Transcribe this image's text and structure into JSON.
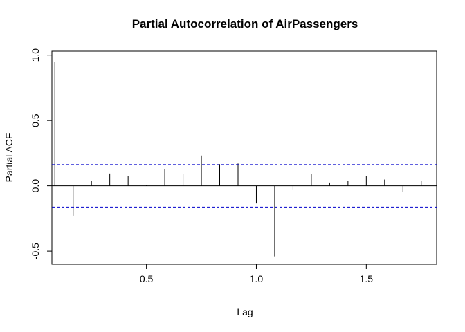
{
  "chart_data": {
    "type": "bar",
    "title": "Partial Autocorrelation of AirPassengers",
    "xlabel": "Lag",
    "ylabel": "Partial ACF",
    "xlim": [
      0.07,
      1.82
    ],
    "ylim": [
      -0.6,
      1.03
    ],
    "x_ticks": [
      0.5,
      1.0,
      1.5
    ],
    "x_tick_labels": [
      "0.5",
      "1.0",
      "1.5"
    ],
    "y_ticks": [
      -0.5,
      0.0,
      0.5,
      1.0
    ],
    "y_tick_labels": [
      "-0.5",
      "0.0",
      "0.5",
      "1.0"
    ],
    "confidence_bound": 0.163,
    "zero_line": true,
    "lags": [
      0.0833,
      0.1667,
      0.25,
      0.3333,
      0.4167,
      0.5,
      0.5833,
      0.6667,
      0.75,
      0.8333,
      0.9167,
      1.0,
      1.0833,
      1.1667,
      1.25,
      1.3333,
      1.4167,
      1.5,
      1.5833,
      1.6667,
      1.75
    ],
    "values": [
      0.948,
      -0.229,
      0.038,
      0.094,
      0.074,
      0.008,
      0.126,
      0.09,
      0.232,
      0.166,
      0.171,
      -0.135,
      -0.54,
      -0.027,
      0.091,
      0.025,
      0.036,
      0.075,
      0.048,
      -0.046,
      0.04
    ],
    "colors": {
      "bars": "#000000",
      "bound_line": "#0000cc",
      "axes": "#000000"
    }
  }
}
